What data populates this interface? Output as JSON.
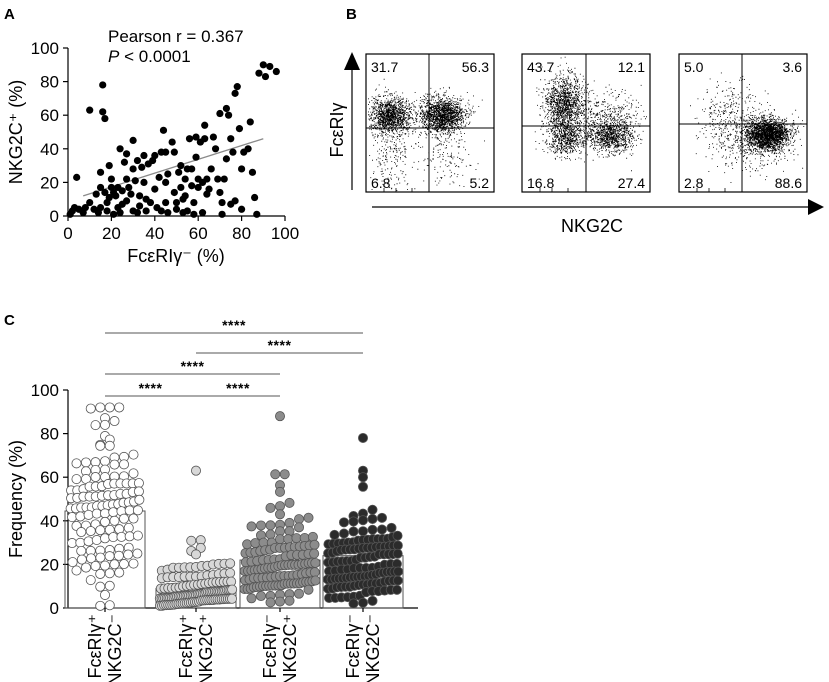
{
  "panels": {
    "a": {
      "letter": "A"
    },
    "b": {
      "letter": "B"
    },
    "c": {
      "letter": "C"
    }
  },
  "chart_data": [
    {
      "type": "scatter",
      "panel": "A",
      "title": "",
      "xlabel": "FcεRIγ⁻ (%)",
      "ylabel": "NKG2C⁺ (%)",
      "xlim": [
        0,
        100
      ],
      "ylim": [
        0,
        100
      ],
      "xticks": [
        "0",
        "20",
        "40",
        "60",
        "80",
        "100"
      ],
      "yticks": [
        "0",
        "20",
        "40",
        "60",
        "80",
        "100"
      ],
      "annotation": {
        "pearson": "Pearson r = 0.367",
        "p_italic": "P",
        "p_rest": " < 0.0001"
      },
      "trend_line": {
        "x": [
          7,
          90
        ],
        "y": [
          12,
          46
        ]
      },
      "points": [
        [
          1,
          1
        ],
        [
          2,
          3
        ],
        [
          3,
          5
        ],
        [
          4,
          23
        ],
        [
          5,
          4
        ],
        [
          7,
          2
        ],
        [
          8,
          5
        ],
        [
          10,
          63
        ],
        [
          10,
          8
        ],
        [
          12,
          4
        ],
        [
          13,
          13
        ],
        [
          14,
          2
        ],
        [
          15,
          5
        ],
        [
          15,
          17
        ],
        [
          15,
          26
        ],
        [
          16,
          78
        ],
        [
          16,
          62
        ],
        [
          17,
          58
        ],
        [
          17,
          14
        ],
        [
          18,
          3
        ],
        [
          18,
          8
        ],
        [
          19,
          11
        ],
        [
          19,
          30
        ],
        [
          20,
          17
        ],
        [
          20,
          22
        ],
        [
          21,
          1
        ],
        [
          21,
          14
        ],
        [
          22,
          12
        ],
        [
          23,
          17
        ],
        [
          23,
          5
        ],
        [
          24,
          2
        ],
        [
          24,
          40
        ],
        [
          25,
          15
        ],
        [
          25,
          7
        ],
        [
          26,
          32
        ],
        [
          27,
          37
        ],
        [
          27,
          22
        ],
        [
          27,
          9
        ],
        [
          28,
          17
        ],
        [
          29,
          13
        ],
        [
          30,
          3
        ],
        [
          30,
          28
        ],
        [
          30,
          45
        ],
        [
          31,
          21
        ],
        [
          32,
          2
        ],
        [
          32,
          33
        ],
        [
          33,
          12
        ],
        [
          33,
          6
        ],
        [
          34,
          29
        ],
        [
          35,
          20
        ],
        [
          35,
          36
        ],
        [
          36,
          3
        ],
        [
          36,
          10
        ],
        [
          37,
          31
        ],
        [
          38,
          8
        ],
        [
          39,
          33
        ],
        [
          40,
          16
        ],
        [
          40,
          36
        ],
        [
          41,
          5
        ],
        [
          42,
          23
        ],
        [
          43,
          3
        ],
        [
          43,
          38
        ],
        [
          44,
          51
        ],
        [
          45,
          8
        ],
        [
          45,
          20
        ],
        [
          45,
          38
        ],
        [
          46,
          25
        ],
        [
          46,
          2
        ],
        [
          48,
          44
        ],
        [
          49,
          38
        ],
        [
          49,
          14
        ],
        [
          50,
          8
        ],
        [
          50,
          4
        ],
        [
          51,
          26
        ],
        [
          52,
          17
        ],
        [
          52,
          30
        ],
        [
          53,
          10
        ],
        [
          53,
          2
        ],
        [
          54,
          22
        ],
        [
          54,
          12
        ],
        [
          55,
          3
        ],
        [
          55,
          28
        ],
        [
          56,
          46
        ],
        [
          57,
          28
        ],
        [
          57,
          18
        ],
        [
          58,
          8
        ],
        [
          58,
          1
        ],
        [
          59,
          35
        ],
        [
          59,
          47
        ],
        [
          60,
          17
        ],
        [
          60,
          22
        ],
        [
          61,
          44
        ],
        [
          62,
          20
        ],
        [
          62,
          2
        ],
        [
          63,
          54
        ],
        [
          63,
          46
        ],
        [
          64,
          22
        ],
        [
          64,
          13
        ],
        [
          65,
          16
        ],
        [
          66,
          28
        ],
        [
          67,
          47
        ],
        [
          68,
          40
        ],
        [
          69,
          22
        ],
        [
          70,
          61
        ],
        [
          70,
          14
        ],
        [
          71,
          1
        ],
        [
          71,
          8
        ],
        [
          72,
          22
        ],
        [
          73,
          64
        ],
        [
          73,
          34
        ],
        [
          74,
          60
        ],
        [
          75,
          46
        ],
        [
          75,
          7
        ],
        [
          76,
          38
        ],
        [
          77,
          73
        ],
        [
          77,
          9
        ],
        [
          78,
          77
        ],
        [
          79,
          52
        ],
        [
          80,
          28
        ],
        [
          80,
          4
        ],
        [
          81,
          38
        ],
        [
          83,
          40
        ],
        [
          84,
          56
        ],
        [
          85,
          26
        ],
        [
          86,
          11
        ],
        [
          87,
          1
        ],
        [
          88,
          85
        ],
        [
          90,
          90
        ],
        [
          91,
          83
        ],
        [
          93,
          89
        ],
        [
          96,
          86
        ]
      ]
    },
    {
      "type": "flow-cytometry",
      "panel": "B",
      "xlabel": "NKG2C",
      "ylabel": "FcεRIγ",
      "plots": [
        {
          "q": [
            "31.7",
            "56.3",
            "6.8",
            "5.2"
          ]
        },
        {
          "q": [
            "43.7",
            "12.1",
            "16.8",
            "27.4"
          ]
        },
        {
          "q": [
            "5.0",
            "3.6",
            "2.8",
            "88.6"
          ]
        }
      ]
    },
    {
      "type": "bar",
      "panel": "C",
      "ylabel": "Frequency (%)",
      "ylim": [
        0,
        100
      ],
      "yticks": [
        "0",
        "20",
        "40",
        "60",
        "80",
        "100"
      ],
      "categories": [
        {
          "l1": "FcεRIγ⁺",
          "l2": "NKG2C⁻"
        },
        {
          "l1": "FcεRIγ⁺",
          "l2": "NKG2C⁺"
        },
        {
          "l1": "FcεRIγ⁻",
          "l2": "NKG2C⁺"
        },
        {
          "l1": "FcεRIγ⁻",
          "l2": "NKG2C⁻"
        }
      ],
      "means": [
        44.5,
        9,
        22,
        24
      ],
      "maxima": [
        92,
        63,
        88,
        78
      ],
      "n_per_group": 130,
      "point_fill": [
        "#ffffff",
        "#d8d8d8",
        "#8c8c8c",
        "#2b2b2b"
      ],
      "comparisons": [
        {
          "from": 0,
          "to": 3,
          "label": "****"
        },
        {
          "from": 1,
          "to": 3,
          "label": "****"
        },
        {
          "from": 0,
          "to": 2,
          "label": "****"
        },
        {
          "from": 0,
          "to": 1,
          "label": "****"
        },
        {
          "from": 1,
          "to": 2,
          "label": "****"
        }
      ]
    }
  ]
}
